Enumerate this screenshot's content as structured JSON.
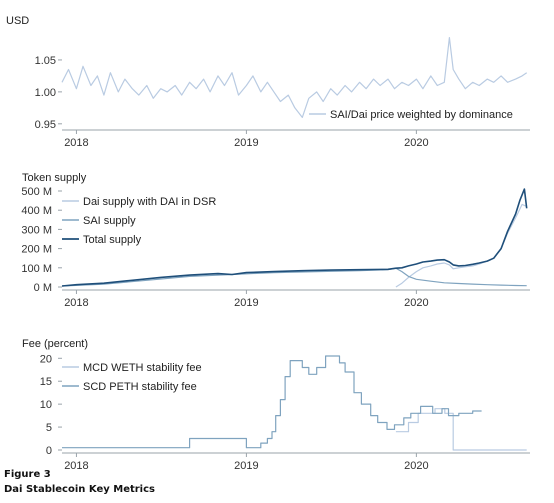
{
  "colors": {
    "light": "#b9cbe2",
    "mid": "#7fa3bf",
    "dark": "#1f4f7a",
    "axis": "#9aa3aa",
    "tick": "#333333"
  },
  "caption": {
    "label": "Figure 3",
    "title": "Dai Stablecoin Key Metrics"
  },
  "chart_data": [
    {
      "type": "line",
      "ylabel": "USD",
      "x_ticks": [
        "2018",
        "2019",
        "2020"
      ],
      "x_range": [
        "2017-12-01",
        "2020-09-01"
      ],
      "y_ticks": [
        "1.05",
        "1.00",
        "0.95"
      ],
      "y_tick_values": [
        1.05,
        1.0,
        0.95
      ],
      "ylim": [
        0.945,
        1.1
      ],
      "legend_position": "bottom-right",
      "series": [
        {
          "name": "SAI/Dai price weighted by dominance",
          "color": "light",
          "x": [
            "2017-12-01",
            "2017-12-15",
            "2018-01-01",
            "2018-01-15",
            "2018-02-01",
            "2018-02-15",
            "2018-03-01",
            "2018-03-15",
            "2018-04-01",
            "2018-04-15",
            "2018-05-01",
            "2018-05-15",
            "2018-06-01",
            "2018-06-15",
            "2018-07-01",
            "2018-07-15",
            "2018-08-01",
            "2018-08-15",
            "2018-09-01",
            "2018-09-15",
            "2018-10-01",
            "2018-10-15",
            "2018-11-01",
            "2018-11-15",
            "2018-12-01",
            "2018-12-15",
            "2019-01-01",
            "2019-01-15",
            "2019-02-01",
            "2019-02-15",
            "2019-03-01",
            "2019-03-15",
            "2019-04-01",
            "2019-04-15",
            "2019-05-01",
            "2019-05-15",
            "2019-06-01",
            "2019-06-15",
            "2019-07-01",
            "2019-07-15",
            "2019-08-01",
            "2019-08-15",
            "2019-09-01",
            "2019-09-15",
            "2019-10-01",
            "2019-10-15",
            "2019-11-01",
            "2019-11-15",
            "2019-12-01",
            "2019-12-15",
            "2020-01-01",
            "2020-01-15",
            "2020-02-01",
            "2020-02-15",
            "2020-03-01",
            "2020-03-12",
            "2020-03-20",
            "2020-04-01",
            "2020-04-15",
            "2020-05-01",
            "2020-05-15",
            "2020-06-01",
            "2020-06-15",
            "2020-07-01",
            "2020-07-15",
            "2020-08-01",
            "2020-08-15",
            "2020-08-25"
          ],
          "values": [
            1.015,
            1.035,
            1.005,
            1.04,
            1.01,
            1.025,
            0.995,
            1.03,
            1.0,
            1.02,
            1.005,
            0.995,
            1.01,
            0.99,
            1.005,
            1.0,
            1.01,
            0.995,
            1.015,
            1.005,
            1.02,
            1.0,
            1.025,
            1.01,
            1.03,
            0.995,
            1.01,
            1.025,
            1.0,
            1.015,
            1.0,
            0.985,
            0.995,
            0.975,
            0.96,
            0.99,
            1.0,
            0.985,
            1.005,
            0.995,
            1.01,
            1.0,
            1.015,
            1.005,
            1.02,
            1.01,
            1.02,
            1.005,
            1.015,
            1.01,
            1.02,
            1.005,
            1.025,
            1.01,
            1.015,
            1.085,
            1.035,
            1.02,
            1.005,
            1.015,
            1.01,
            1.02,
            1.015,
            1.025,
            1.015,
            1.02,
            1.025,
            1.03
          ]
        }
      ]
    },
    {
      "type": "line",
      "ylabel": "Token supply",
      "x_ticks": [
        "2018",
        "2019",
        "2020"
      ],
      "x_range": [
        "2017-12-01",
        "2020-09-01"
      ],
      "y_ticks": [
        "500 M",
        "400 M",
        "300 M",
        "200 M",
        "100 M",
        "0 M"
      ],
      "y_tick_values": [
        500,
        400,
        300,
        200,
        100,
        0
      ],
      "ylim": [
        0,
        500
      ],
      "legend_position": "top-left",
      "series": [
        {
          "name": "Dai supply with DAI in DSR",
          "color": "light",
          "x": [
            "2019-11-18",
            "2019-12-01",
            "2019-12-15",
            "2020-01-01",
            "2020-01-15",
            "2020-02-01",
            "2020-02-15",
            "2020-03-01",
            "2020-03-12",
            "2020-03-20",
            "2020-04-01",
            "2020-04-15",
            "2020-05-01",
            "2020-05-15",
            "2020-06-01",
            "2020-06-15",
            "2020-07-01",
            "2020-07-15",
            "2020-08-01",
            "2020-08-15",
            "2020-08-25"
          ],
          "values": [
            0,
            20,
            50,
            80,
            100,
            110,
            120,
            125,
            115,
            95,
            100,
            105,
            110,
            120,
            135,
            150,
            200,
            280,
            360,
            430,
            420
          ]
        },
        {
          "name": "SAI supply",
          "color": "mid",
          "x": [
            "2017-12-01",
            "2018-03-01",
            "2018-06-01",
            "2018-09-01",
            "2018-12-01",
            "2019-03-01",
            "2019-06-01",
            "2019-09-01",
            "2019-11-01",
            "2019-11-18",
            "2019-12-01",
            "2019-12-15",
            "2020-01-01",
            "2020-02-01",
            "2020-03-01",
            "2020-04-01",
            "2020-05-01",
            "2020-06-01",
            "2020-07-01",
            "2020-08-01",
            "2020-08-25"
          ],
          "values": [
            5,
            15,
            35,
            55,
            65,
            75,
            80,
            85,
            90,
            98,
            80,
            55,
            40,
            30,
            22,
            18,
            15,
            12,
            10,
            8,
            7
          ]
        },
        {
          "name": "Total supply",
          "color": "dark",
          "x": [
            "2017-12-01",
            "2018-01-01",
            "2018-03-01",
            "2018-05-01",
            "2018-07-01",
            "2018-09-01",
            "2018-11-01",
            "2018-12-01",
            "2019-01-01",
            "2019-03-01",
            "2019-05-01",
            "2019-07-01",
            "2019-09-01",
            "2019-11-01",
            "2019-11-18",
            "2019-12-01",
            "2019-12-15",
            "2020-01-01",
            "2020-01-15",
            "2020-02-01",
            "2020-02-15",
            "2020-03-01",
            "2020-03-12",
            "2020-03-20",
            "2020-04-01",
            "2020-04-15",
            "2020-05-01",
            "2020-05-15",
            "2020-06-01",
            "2020-06-15",
            "2020-07-01",
            "2020-07-15",
            "2020-08-01",
            "2020-08-10",
            "2020-08-15",
            "2020-08-20",
            "2020-08-25"
          ],
          "values": [
            5,
            12,
            20,
            35,
            50,
            62,
            70,
            65,
            75,
            80,
            85,
            88,
            90,
            92,
            98,
            100,
            110,
            120,
            130,
            135,
            140,
            142,
            130,
            115,
            110,
            112,
            118,
            125,
            135,
            150,
            200,
            290,
            380,
            450,
            480,
            510,
            410
          ]
        }
      ]
    },
    {
      "type": "line",
      "ylabel": "Fee (percent)",
      "x_ticks": [
        "2018",
        "2019",
        "2020"
      ],
      "x_range": [
        "2017-12-01",
        "2020-09-01"
      ],
      "y_ticks": [
        "20",
        "15",
        "10",
        "5",
        "0"
      ],
      "y_tick_values": [
        20,
        15,
        10,
        5,
        0
      ],
      "ylim": [
        0,
        20.5
      ],
      "legend_position": "top-left",
      "series": [
        {
          "name": "MCD WETH stability fee",
          "color": "light",
          "x": [
            "2019-11-18",
            "2019-12-15",
            "2019-12-15",
            "2020-01-05",
            "2020-01-05",
            "2020-02-10",
            "2020-02-10",
            "2020-03-02",
            "2020-03-02",
            "2020-03-20",
            "2020-03-20",
            "2020-05-01",
            "2020-05-01",
            "2020-06-01",
            "2020-06-01",
            "2020-08-25"
          ],
          "values": [
            4,
            4,
            6,
            6,
            8,
            8,
            9,
            9,
            8,
            8,
            0,
            0,
            0,
            0,
            0,
            0
          ]
        },
        {
          "name": "SCD PETH stability fee",
          "color": "mid",
          "x": [
            "2017-12-01",
            "2018-09-01",
            "2018-09-01",
            "2019-01-01",
            "2019-01-01",
            "2019-02-01",
            "2019-02-01",
            "2019-02-15",
            "2019-02-15",
            "2019-02-25",
            "2019-02-25",
            "2019-03-05",
            "2019-03-05",
            "2019-03-15",
            "2019-03-15",
            "2019-03-25",
            "2019-03-25",
            "2019-04-05",
            "2019-04-05",
            "2019-05-01",
            "2019-05-01",
            "2019-05-15",
            "2019-05-15",
            "2019-06-01",
            "2019-06-01",
            "2019-06-20",
            "2019-06-20",
            "2019-07-20",
            "2019-07-20",
            "2019-08-01",
            "2019-08-01",
            "2019-08-20",
            "2019-08-20",
            "2019-09-05",
            "2019-09-05",
            "2019-09-25",
            "2019-09-25",
            "2019-10-10",
            "2019-10-10",
            "2019-10-30",
            "2019-10-30",
            "2019-11-15",
            "2019-11-15",
            "2019-12-05",
            "2019-12-05",
            "2019-12-20",
            "2019-12-20",
            "2020-01-10",
            "2020-01-10",
            "2020-02-05",
            "2020-02-05",
            "2020-02-25",
            "2020-02-25",
            "2020-03-10",
            "2020-03-10",
            "2020-04-01",
            "2020-04-01",
            "2020-05-01",
            "2020-05-01",
            "2020-05-20"
          ],
          "values": [
            0.5,
            0.5,
            2.5,
            2.5,
            0.5,
            0.5,
            1.5,
            1.5,
            2.5,
            2.5,
            4,
            4,
            7.5,
            7.5,
            11,
            11,
            16,
            16,
            19.5,
            19.5,
            18,
            18,
            16.5,
            16.5,
            18,
            18,
            20.5,
            20.5,
            19,
            19,
            17,
            17,
            12.5,
            12.5,
            10,
            10,
            7.5,
            7.5,
            6,
            6,
            4.5,
            4.5,
            5.5,
            5.5,
            7,
            7,
            8,
            8,
            9.5,
            9.5,
            8,
            8,
            9,
            9,
            7.5,
            7.5,
            8,
            8,
            8.5,
            8.5
          ]
        }
      ]
    }
  ]
}
